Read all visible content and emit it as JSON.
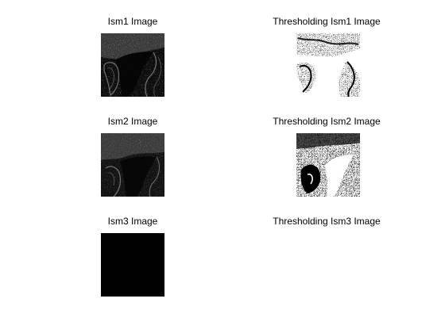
{
  "figure": {
    "background": "#ffffff",
    "panels": [
      {
        "title": "Ism1 Image",
        "kind": "grayscale",
        "variant": "ism1"
      },
      {
        "title": "Thresholding Ism1 Image",
        "kind": "binary",
        "variant": "thr1"
      },
      {
        "title": "Ism2 Image",
        "kind": "grayscale",
        "variant": "ism2"
      },
      {
        "title": "Thresholding Ism2 Image",
        "kind": "binary",
        "variant": "thr2"
      },
      {
        "title": "Ism3 Image",
        "kind": "black",
        "variant": "ism3"
      },
      {
        "title": "Thresholding Ism3 Image",
        "kind": "empty",
        "variant": "thr3"
      }
    ]
  }
}
